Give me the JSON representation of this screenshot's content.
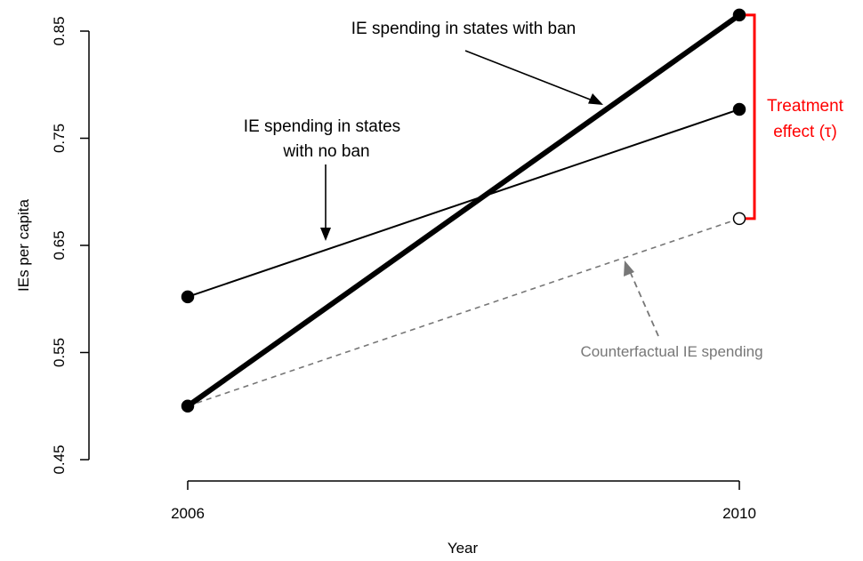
{
  "chart_data": {
    "type": "line",
    "xlabel": "Year",
    "ylabel": "IEs per capita",
    "x_ticks": [
      2006,
      2010
    ],
    "y_ticks": [
      "0.45",
      "0.55",
      "0.65",
      "0.75",
      "0.85"
    ],
    "xlim": [
      2006,
      2010
    ],
    "ylim": [
      0.45,
      0.85
    ],
    "grid": false,
    "series": [
      {
        "key": "ban",
        "x": [
          2006,
          2010
        ],
        "y": [
          0.5,
          0.865
        ],
        "color": "#000000",
        "style": "thick-solid",
        "marker": "filled"
      },
      {
        "key": "noban",
        "x": [
          2006,
          2010
        ],
        "y": [
          0.602,
          0.777
        ],
        "color": "#000000",
        "style": "solid",
        "marker": "filled"
      },
      {
        "key": "counterfactual",
        "x": [
          2006,
          2010
        ],
        "y": [
          0.5,
          0.675
        ],
        "color": "#777777",
        "style": "dashed",
        "marker": "start-filled-end-open"
      }
    ],
    "annotations": {
      "ban_label": "IE spending in states with ban",
      "noban_label_line1": "IE spending in states",
      "noban_label_line2": "with no ban",
      "counterfactual_label": "Counterfactual IE spending",
      "treatment_line1": "Treatment",
      "treatment_line2": "effect (τ)",
      "treatment_color": "#ff0000",
      "counterfactual_color": "#777777"
    }
  }
}
